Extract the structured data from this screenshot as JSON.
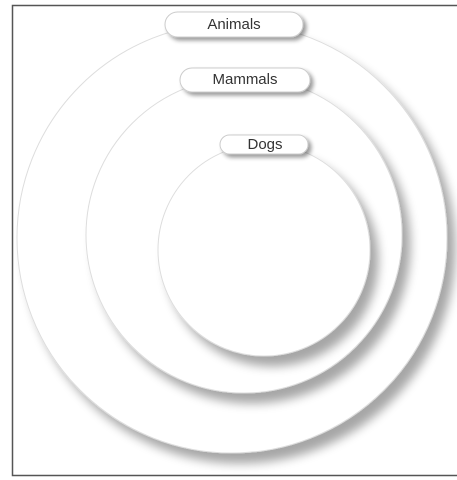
{
  "nodes": [
    {
      "label": "Animals"
    },
    {
      "label": "Mammals"
    },
    {
      "label": "Dogs"
    }
  ]
}
